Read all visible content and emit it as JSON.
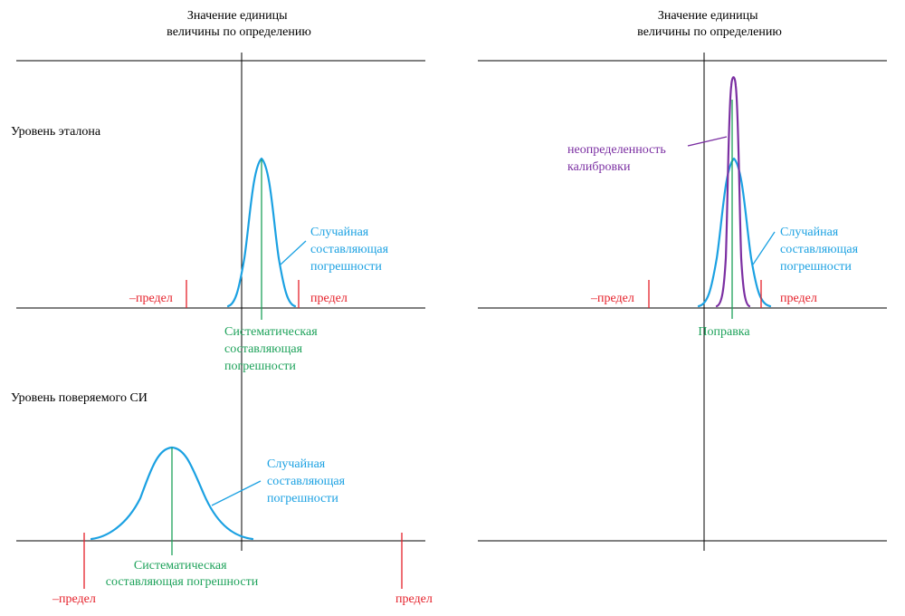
{
  "colors": {
    "axis": "#000000",
    "random": "#1BA1E2",
    "systematic": "#1DA25A",
    "limit": "#E5202A",
    "calibration": "#7B2FA2",
    "text": "#000000"
  },
  "left": {
    "header": [
      "Значение единицы",
      "величины по определению"
    ],
    "standard_level": "Уровень эталона",
    "standard_random": [
      "Случайная",
      "составляющая",
      "погрешности"
    ],
    "standard_neg_limit": "–предел",
    "standard_pos_limit": "предел",
    "standard_systematic": [
      "Систематическая",
      "составляющая",
      "погрешности"
    ],
    "device_level": "Уровень поверяемого СИ",
    "device_random": [
      "Случайная",
      "составляющая",
      "погрешности"
    ],
    "device_systematic": [
      "Систематическая",
      "составляющая погрешности"
    ],
    "device_neg_limit": "–предел",
    "device_pos_limit": "предел"
  },
  "right": {
    "header": [
      "Значение единицы",
      "величины по определению"
    ],
    "calibration": [
      "неопределенность",
      "калибровки"
    ],
    "random": [
      "Случайная",
      "составляющая",
      "погрешности"
    ],
    "neg_limit": "–предел",
    "pos_limit": "предел",
    "correction": "Поправка"
  }
}
